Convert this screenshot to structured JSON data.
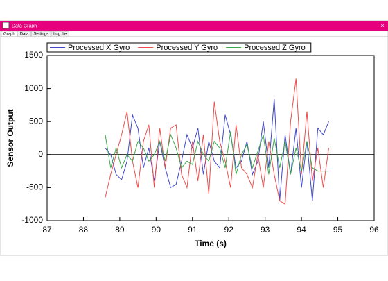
{
  "window": {
    "title": "Data Graph",
    "tabs": [
      "Graph",
      "Data",
      "Settings",
      "Log file"
    ]
  },
  "chart_data": {
    "type": "line",
    "xlabel": "Time (s)",
    "ylabel": "Sensor Output",
    "xlim": [
      87,
      96
    ],
    "xticks": [
      87,
      88,
      89,
      90,
      91,
      92,
      93,
      94,
      95,
      96
    ],
    "ylim": [
      -1000,
      1500
    ],
    "yticks": [
      -1000,
      -500,
      0,
      500,
      1000,
      1500
    ],
    "x": [
      88.6,
      88.75,
      88.9,
      89.05,
      89.2,
      89.35,
      89.5,
      89.65,
      89.8,
      89.95,
      90.1,
      90.25,
      90.4,
      90.55,
      90.7,
      90.85,
      91,
      91.15,
      91.3,
      91.45,
      91.6,
      91.75,
      91.9,
      92.05,
      92.2,
      92.35,
      92.5,
      92.65,
      92.8,
      92.95,
      93.1,
      93.25,
      93.4,
      93.55,
      93.7,
      93.85,
      94,
      94.15,
      94.3,
      94.45,
      94.6,
      94.75
    ],
    "series": [
      {
        "name": "Processed X Gyro",
        "color": "#3f48cc",
        "values": [
          100,
          0,
          -300,
          -380,
          -100,
          600,
          400,
          -200,
          100,
          -400,
          200,
          -200,
          -500,
          -450,
          -100,
          300,
          100,
          400,
          -300,
          200,
          -100,
          -200,
          600,
          300,
          -200,
          -100,
          200,
          -300,
          -100,
          500,
          -200,
          850,
          -700,
          300,
          -300,
          400,
          -500,
          200,
          -700,
          400,
          300,
          500
        ]
      },
      {
        "name": "Processed Y Gyro",
        "color": "#ed4c4c",
        "values": [
          -650,
          -300,
          0,
          300,
          650,
          -100,
          -500,
          200,
          450,
          -500,
          400,
          -200,
          400,
          450,
          -300,
          -500,
          200,
          -400,
          300,
          -600,
          800,
          200,
          -100,
          -500,
          450,
          -200,
          -300,
          -500,
          0,
          -500,
          200,
          -300,
          -700,
          -750,
          500,
          1150,
          -300,
          650,
          -400,
          100,
          -500,
          100
        ]
      },
      {
        "name": "Processed Z Gyro",
        "color": "#3aa84a",
        "values": [
          300,
          -200,
          100,
          -200,
          0,
          -100,
          200,
          100,
          -100,
          0,
          200,
          -100,
          300,
          100,
          -200,
          -100,
          -150,
          200,
          0,
          -100,
          200,
          100,
          -200,
          350,
          -300,
          0,
          150,
          -200,
          50,
          300,
          -300,
          250,
          -200,
          200,
          -300,
          100,
          -250,
          200,
          -200,
          -250,
          -250,
          -250
        ]
      }
    ]
  }
}
